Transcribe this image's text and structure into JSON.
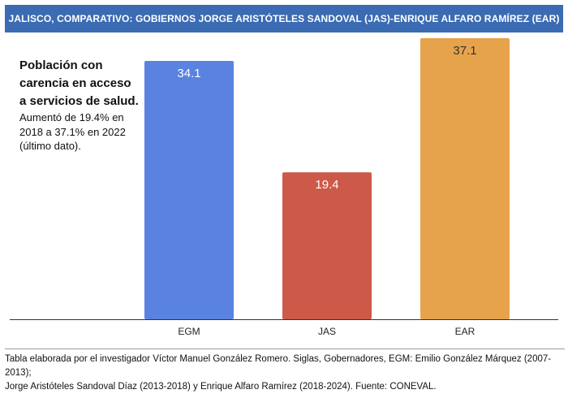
{
  "header": {
    "title": "JALISCO, COMPARATIVO: GOBIERNOS JORGE ARISTÓTELES SANDOVAL (JAS)-ENRIQUE ALFARO RAMÍREZ (EAR)"
  },
  "note": {
    "bold": "Población con carencia en acceso a servicios de salud.",
    "text": "Aumentó de 19.4% en 2018 a 37.1% en 2022 (último dato)."
  },
  "caption": {
    "line1": "Tabla elaborada por el investigador Víctor Manuel González Romero. Siglas, Gobernadores, EGM: Emilio González Márquez (2007-2013);",
    "line2": "Jorge Aristóteles Sandoval Díaz (2013-2018) y Enrique Alfaro Ramírez (2018-2024). Fuente: CONEVAL."
  },
  "chart_data": {
    "type": "bar",
    "title": "JALISCO, COMPARATIVO: GOBIERNOS JORGE ARISTÓTELES SANDOVAL (JAS)-ENRIQUE ALFARO RAMÍREZ (EAR)",
    "categories": [
      "EGM",
      "JAS",
      "EAR"
    ],
    "values": [
      34.1,
      19.4,
      37.1
    ],
    "data_labels": [
      "34.1",
      "19.4",
      "37.1"
    ],
    "colors": [
      "#5a82e0",
      "#cd5a48",
      "#e6a34c"
    ],
    "xlabel": "",
    "ylabel": "",
    "ylim": [
      0,
      37.1
    ],
    "grid": false
  }
}
